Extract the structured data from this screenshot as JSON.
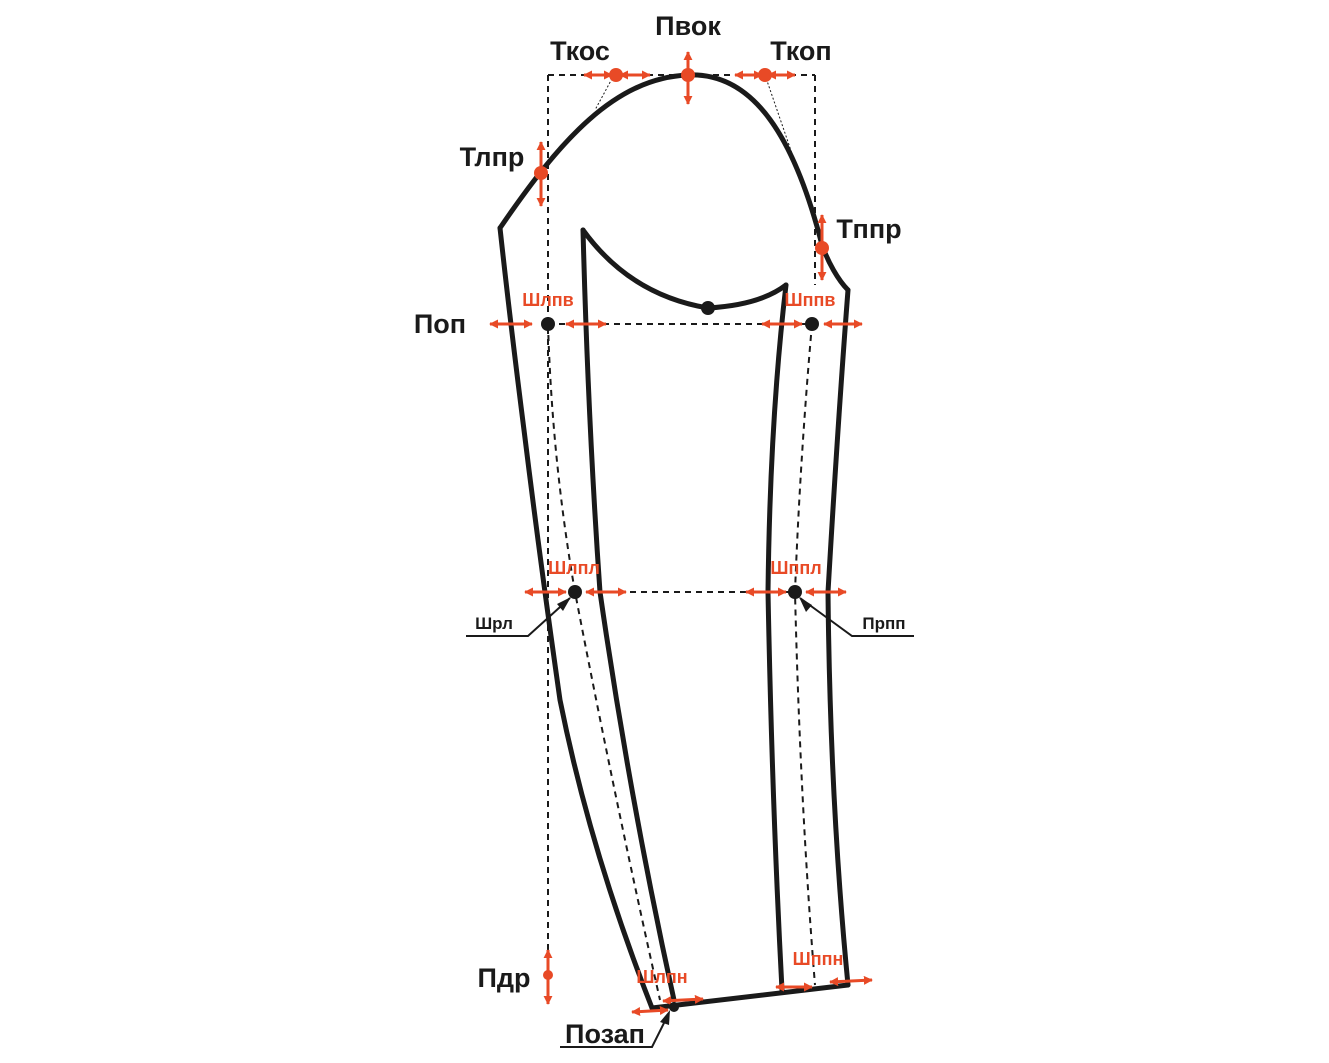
{
  "colors": {
    "accent": "#e84a26",
    "line": "#1a1a1a"
  },
  "labels": {
    "pvok": "Пвок",
    "tkos": "Ткос",
    "tkop": "Ткоп",
    "tlpr": "Тлпр",
    "tppr": "Тппр",
    "pop": "Поп",
    "shlpv": "Шлпв",
    "shppv": "Шппв",
    "shlpl": "Шлпл",
    "shppl": "Шппл",
    "shrl": "Шрл",
    "prpp": "Прпп",
    "pdr": "Пдр",
    "shlpn": "Шлпн",
    "shppn": "Шппн",
    "pozap": "Позап"
  }
}
